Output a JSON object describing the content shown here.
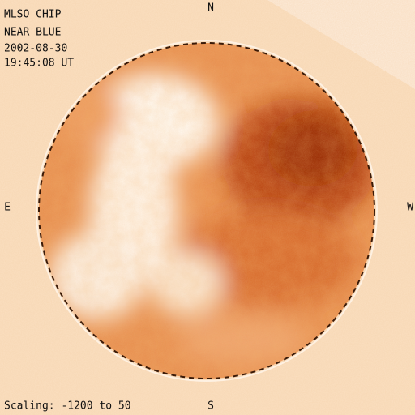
{
  "header": {
    "instrument": "MLSO CHIP",
    "filter": "NEAR BLUE",
    "date": "2002-08-30",
    "time": "19:45:08 UT"
  },
  "directions": {
    "north": "N",
    "east": "E",
    "west": "W",
    "south": "S"
  },
  "footer": {
    "scaling": "Scaling: -1200 to 50"
  }
}
